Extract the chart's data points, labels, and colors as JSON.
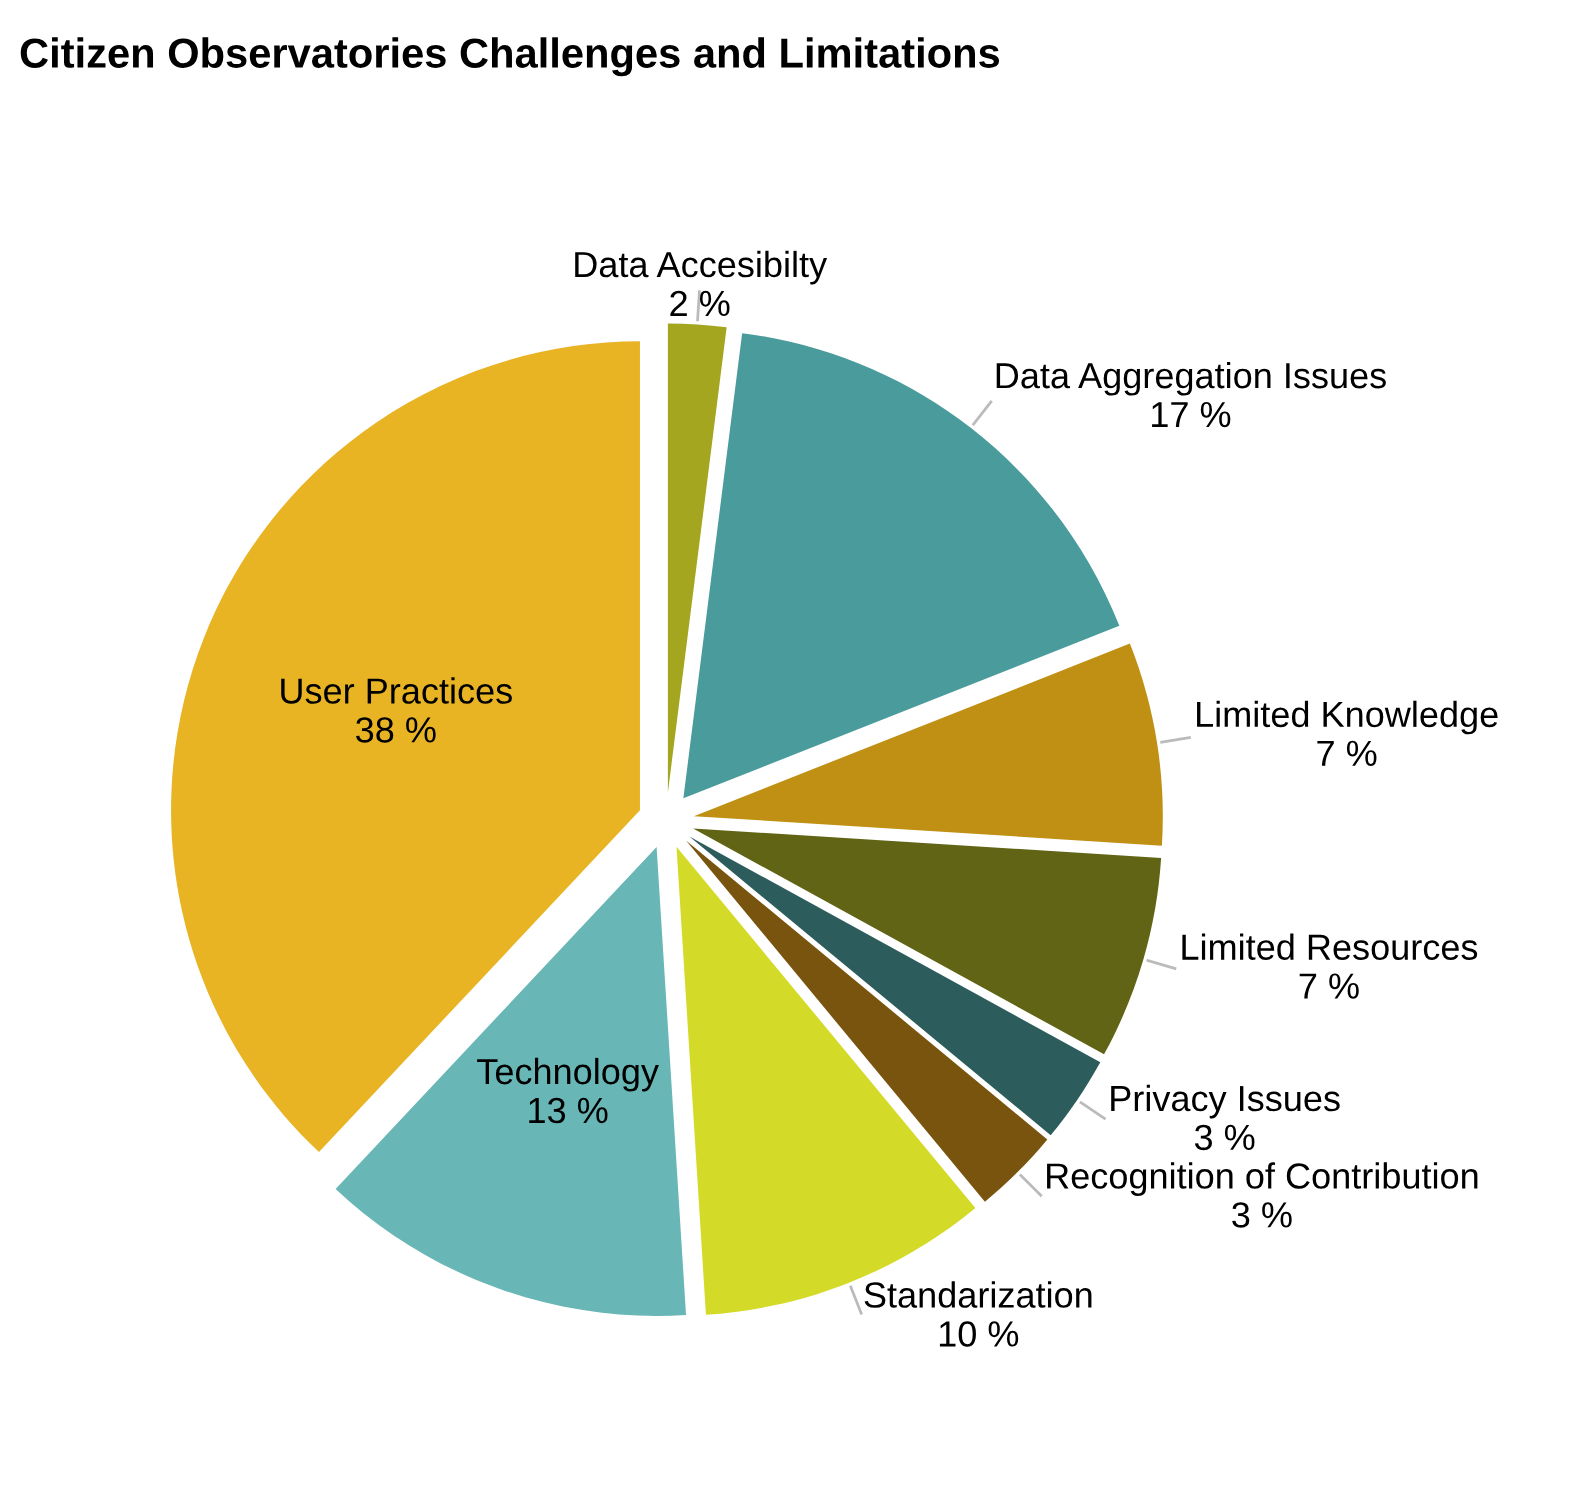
{
  "chart_data": {
    "type": "pie",
    "title": "Citizen Observatories Challenges and Limitations",
    "categories": [
      "Data Accesibilty",
      "Data Aggregation Issues",
      "Limited Knowledge",
      "Limited Resources",
      "Privacy Issues",
      "Recognition of Contribution",
      "Standarization",
      "Technology",
      "User Practices"
    ],
    "values": [
      2,
      17,
      7,
      7,
      3,
      3,
      10,
      13,
      38
    ],
    "colors": [
      "#a3a61e",
      "#4a9b9b",
      "#c09014",
      "#606414",
      "#2c5c5c",
      "#78540e",
      "#d4da28",
      "#68b6b6",
      "#e8b424"
    ],
    "value_labels": [
      "2 %",
      "17 %",
      "7 %",
      "7 %",
      "3 %",
      "3 %",
      "10 %",
      "13 %",
      "38 %"
    ]
  }
}
